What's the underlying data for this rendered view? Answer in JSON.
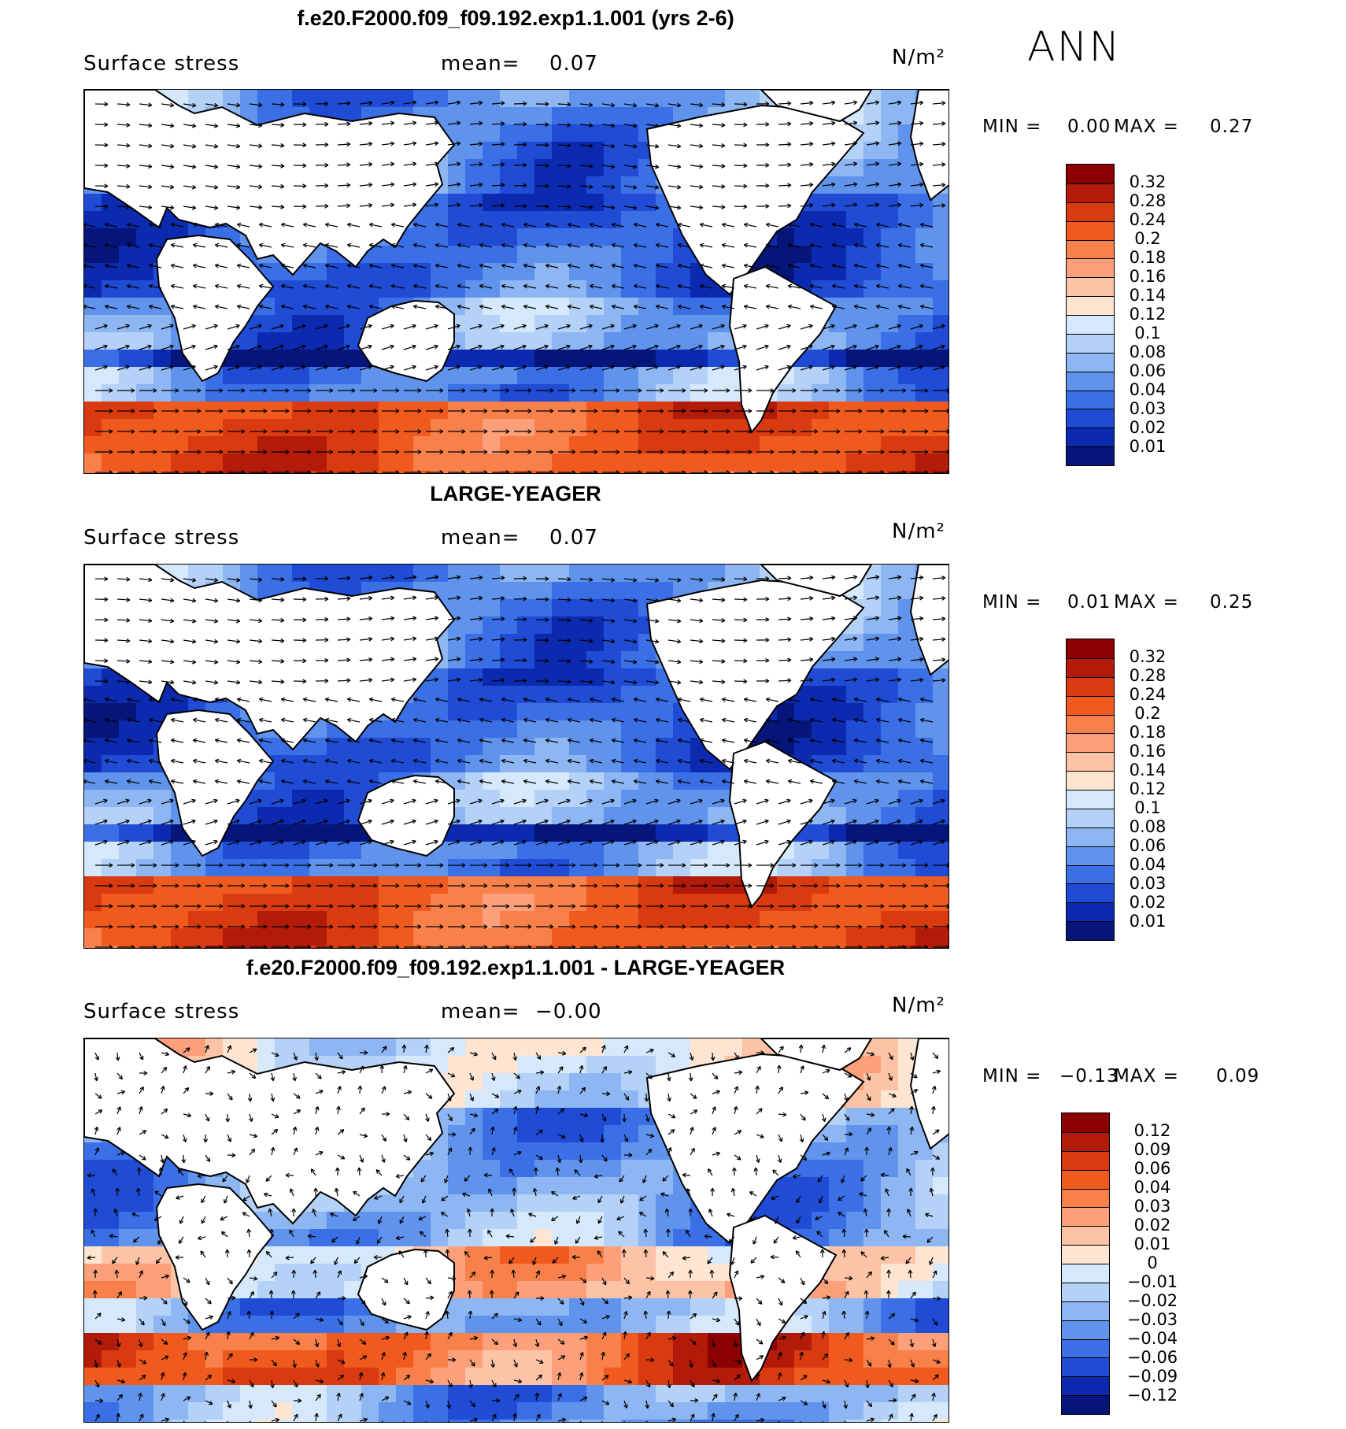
{
  "season": "ANN",
  "panels": [
    {
      "title": "f.e20.F2000.f09_f09.192.exp1.1.001 (yrs 2-6)",
      "variable": "Surface stress",
      "mean_label": "mean=",
      "mean_value": "0.07",
      "units": "N/m²",
      "min_label": "MIN =",
      "min_value": "0.00",
      "max_label": "MAX =",
      "max_value": "0.27",
      "colorbar": {
        "labels": [
          "0.32",
          "0.28",
          "0.24",
          "0.2",
          "0.18",
          "0.16",
          "0.14",
          "0.12",
          "0.1",
          "0.08",
          "0.06",
          "0.04",
          "0.03",
          "0.02",
          "0.01"
        ],
        "colors": [
          "#8b0000",
          "#b21a0a",
          "#d93a10",
          "#f05a1e",
          "#f8804a",
          "#fba07a",
          "#fcc3a6",
          "#fde5d2",
          "#d6e8fb",
          "#b4d1f7",
          "#8db6f2",
          "#5f93ec",
          "#3b6fe6",
          "#1f4bd5",
          "#0c2ab0",
          "#06157a"
        ]
      }
    },
    {
      "title": "LARGE-YEAGER",
      "variable": "Surface stress",
      "mean_label": "mean=",
      "mean_value": "0.07",
      "units": "N/m²",
      "min_label": "MIN =",
      "min_value": "0.01",
      "max_label": "MAX =",
      "max_value": "0.25",
      "colorbar": {
        "labels": [
          "0.32",
          "0.28",
          "0.24",
          "0.2",
          "0.18",
          "0.16",
          "0.14",
          "0.12",
          "0.1",
          "0.08",
          "0.06",
          "0.04",
          "0.03",
          "0.02",
          "0.01"
        ],
        "colors": [
          "#8b0000",
          "#b21a0a",
          "#d93a10",
          "#f05a1e",
          "#f8804a",
          "#fba07a",
          "#fcc3a6",
          "#fde5d2",
          "#d6e8fb",
          "#b4d1f7",
          "#8db6f2",
          "#5f93ec",
          "#3b6fe6",
          "#1f4bd5",
          "#0c2ab0",
          "#06157a"
        ]
      }
    },
    {
      "title": "f.e20.F2000.f09_f09.192.exp1.1.001 - LARGE-YEAGER",
      "variable": "Surface stress",
      "mean_label": "mean=",
      "mean_value": "−0.00",
      "units": "N/m²",
      "min_label": "MIN =",
      "min_value": "−0.13",
      "max_label": "MAX =",
      "max_value": "0.09",
      "colorbar": {
        "labels": [
          "0.12",
          "0.09",
          "0.06",
          "0.04",
          "0.03",
          "0.02",
          "0.01",
          "0",
          "−0.01",
          "−0.02",
          "−0.03",
          "−0.04",
          "−0.06",
          "−0.09",
          "−0.12"
        ],
        "colors": [
          "#8b0000",
          "#b21a0a",
          "#d93a10",
          "#f05a1e",
          "#f8804a",
          "#fba07a",
          "#fcc3a6",
          "#fde5d2",
          "#d6e8fb",
          "#b4d1f7",
          "#8db6f2",
          "#5f93ec",
          "#3b6fe6",
          "#1f4bd5",
          "#0c2ab0",
          "#06157a"
        ]
      }
    }
  ]
}
